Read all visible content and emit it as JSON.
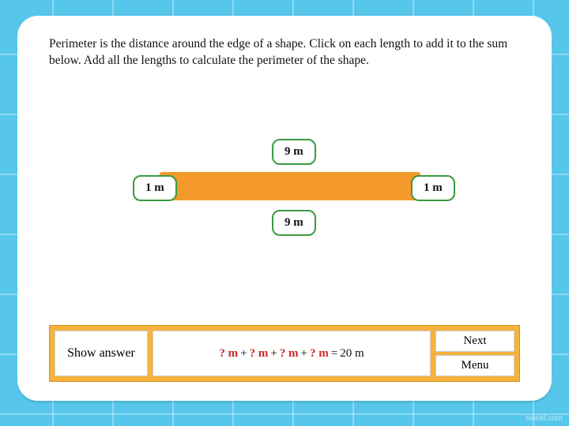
{
  "instructions": "Perimeter is the distance around the edge of a shape. Click on each length to add it to the sum below. Add all the lengths to calculate the perimeter of the shape.",
  "shape": {
    "type": "rectangle",
    "fill_color": "#f39a2b",
    "sides": {
      "top": {
        "label": "9 m",
        "value": 9
      },
      "bottom": {
        "label": "9 m",
        "value": 9
      },
      "left": {
        "label": "1 m",
        "value": 1
      },
      "right": {
        "label": "1 m",
        "value": 1
      }
    },
    "pill_border_color": "#3a9b42"
  },
  "equation": {
    "placeholder": "? m",
    "operator": "+",
    "equals": "=",
    "result": "20 m",
    "placeholder_color": "#cc2a2a"
  },
  "buttons": {
    "show_answer": "Show answer",
    "next": "Next",
    "menu": "Menu"
  },
  "colors": {
    "page_bg": "#56c6ea",
    "card_bg": "#ffffff",
    "bar_bg": "#f7b23c",
    "bar_border": "#d98f18"
  },
  "watermark": "twinkl.com"
}
